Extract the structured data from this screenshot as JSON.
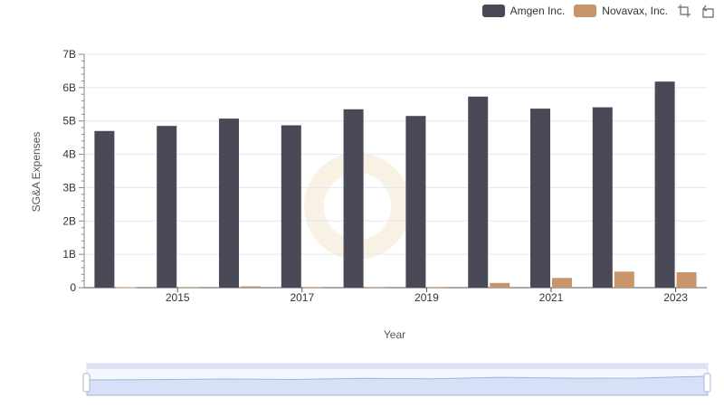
{
  "chart_data": {
    "type": "bar",
    "categories": [
      "2014",
      "2015",
      "2016",
      "2017",
      "2018",
      "2019",
      "2020",
      "2021",
      "2022",
      "2023"
    ],
    "x_tick_labels": [
      "2015",
      "2017",
      "2019",
      "2021",
      "2023"
    ],
    "series": [
      {
        "name": "Amgen Inc.",
        "color": "#4a4957",
        "values": [
          4.7,
          4.85,
          5.07,
          4.87,
          5.35,
          5.15,
          5.73,
          5.37,
          5.41,
          6.18
        ]
      },
      {
        "name": "Novavax, Inc.",
        "color": "#c8956a",
        "values": [
          0.01,
          0.02,
          0.04,
          0.02,
          0.02,
          0.02,
          0.14,
          0.29,
          0.48,
          0.46
        ]
      }
    ],
    "ylim": [
      0,
      7
    ],
    "y_ticks": [
      0,
      1,
      2,
      3,
      4,
      5,
      6,
      7
    ],
    "y_tick_labels": [
      "0",
      "1B",
      "2B",
      "3B",
      "4B",
      "5B",
      "6B",
      "7B"
    ],
    "title": "",
    "xlabel": "Year",
    "ylabel": "SG&A Expenses",
    "legend_position": "top-right",
    "grid": true
  },
  "toolbar": {
    "zoom_icon": "zoom-select-icon",
    "restore_icon": "restore-icon"
  }
}
